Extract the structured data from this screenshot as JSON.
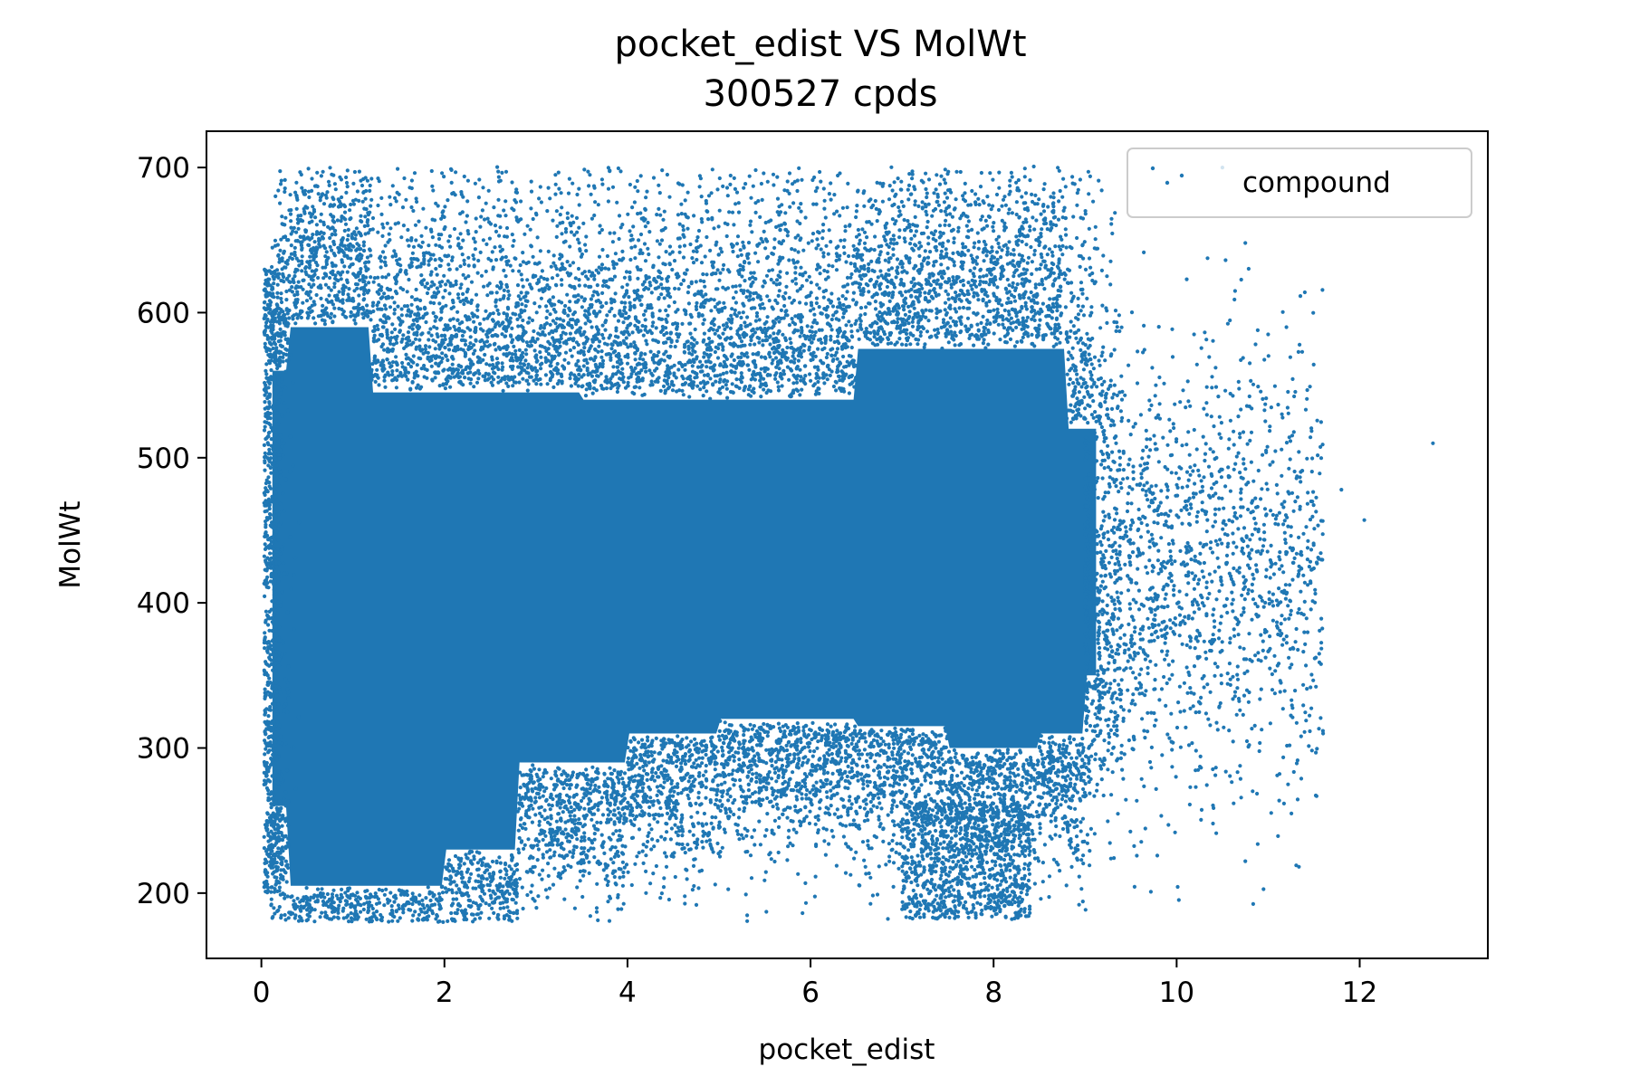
{
  "chart_data": {
    "type": "scatter",
    "title": "pocket_edist VS MolWt",
    "subtitle": "300527 cpds",
    "xlabel": "pocket_edist",
    "ylabel": "MolWt",
    "xlim": [
      -0.6,
      13.4
    ],
    "ylim": [
      155,
      725
    ],
    "xticks": [
      0,
      2,
      4,
      6,
      8,
      10,
      12
    ],
    "yticks": [
      200,
      300,
      400,
      500,
      600,
      700
    ],
    "grid": false,
    "legend": {
      "position": "top-right",
      "entries": [
        "compound"
      ]
    },
    "series": [
      {
        "name": "compound",
        "color": "#1f77b4",
        "points_note_count": 300527,
        "density_regions": [
          {
            "x_range": [
              0.05,
              9.4
            ],
            "y_range": [
              180,
              700
            ],
            "dense_core": [
              0.2,
              9.0,
              300,
              560
            ]
          },
          {
            "x_range": [
              9.4,
              11.7
            ],
            "y_range": [
              220,
              650
            ],
            "sparse": true
          }
        ],
        "outliers": [
          {
            "x": 12.8,
            "y": 510
          },
          {
            "x": 12.05,
            "y": 457
          },
          {
            "x": 11.8,
            "y": 478
          },
          {
            "x": 11.6,
            "y": 310
          },
          {
            "x": 11.4,
            "y": 614
          },
          {
            "x": 11.0,
            "y": 585
          },
          {
            "x": 11.2,
            "y": 590
          },
          {
            "x": 11.15,
            "y": 530
          },
          {
            "x": 11.45,
            "y": 425
          },
          {
            "x": 10.75,
            "y": 648
          },
          {
            "x": 10.75,
            "y": 222
          },
          {
            "x": 10.5,
            "y": 700
          }
        ]
      }
    ]
  }
}
